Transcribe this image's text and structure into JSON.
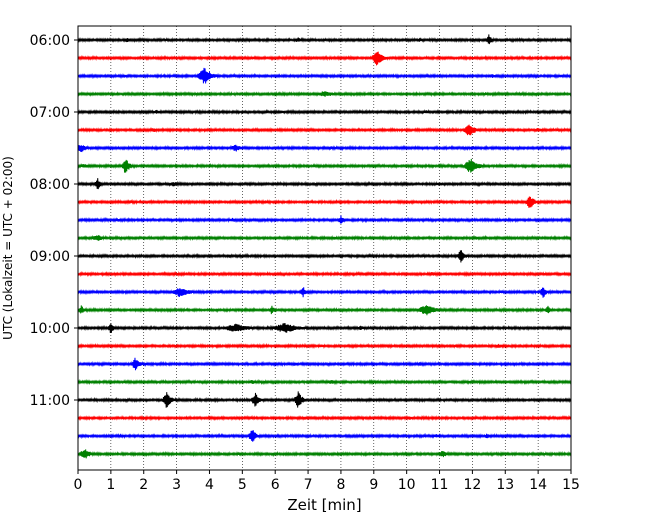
{
  "chart_data": {
    "type": "line",
    "title": "",
    "xlabel": "Zeit  [min]",
    "ylabel": "UTC (Lokalzeit = UTC + 02:00)",
    "xlim": [
      0,
      15
    ],
    "x_ticks": [
      0,
      1,
      2,
      3,
      4,
      5,
      6,
      7,
      8,
      9,
      10,
      11,
      12,
      13,
      14,
      15
    ],
    "x_tick_labels": [
      "0",
      "1",
      "2",
      "3",
      "4",
      "5",
      "6",
      "7",
      "8",
      "9",
      "10",
      "11",
      "12",
      "13",
      "14",
      "15"
    ],
    "y_ticks": [
      {
        "label": "06:00",
        "trace_index": 0
      },
      {
        "label": "07:00",
        "trace_index": 4
      },
      {
        "label": "08:00",
        "trace_index": 8
      },
      {
        "label": "09:00",
        "trace_index": 12
      },
      {
        "label": "10:00",
        "trace_index": 16
      },
      {
        "label": "11:00",
        "trace_index": 20
      }
    ],
    "grid": "vertical dotted",
    "trace_minutes": 15,
    "series_colors": [
      "#000000",
      "#ff0000",
      "#0000ff",
      "#008000"
    ],
    "traces": [
      {
        "start": "06:00",
        "color": "#000000",
        "events": [
          [
            1.5,
            0.25,
            0.2
          ],
          [
            6.7,
            0.3,
            0.2
          ],
          [
            10.4,
            0.25,
            0.15
          ],
          [
            12.5,
            0.7,
            0.1
          ]
        ]
      },
      {
        "start": "06:15",
        "color": "#ff0000",
        "events": [
          [
            9.1,
            0.9,
            0.2
          ],
          [
            5.3,
            0.2,
            0.15
          ],
          [
            12.0,
            0.2,
            0.2
          ]
        ]
      },
      {
        "start": "06:30",
        "color": "#0000ff",
        "events": [
          [
            3.85,
            1.0,
            0.25
          ],
          [
            1.4,
            0.2,
            0.2
          ],
          [
            12.6,
            0.25,
            0.2
          ],
          [
            14.7,
            0.2,
            0.2
          ]
        ]
      },
      {
        "start": "06:45",
        "color": "#008000",
        "events": [
          [
            7.5,
            0.35,
            0.4
          ],
          [
            12.4,
            0.2,
            0.2
          ],
          [
            13.5,
            0.2,
            0.2
          ]
        ]
      },
      {
        "start": "07:00",
        "color": "#000000",
        "events": [
          [
            2.4,
            0.25,
            0.2
          ],
          [
            6.2,
            0.2,
            0.2
          ],
          [
            10.6,
            0.2,
            0.2
          ]
        ]
      },
      {
        "start": "07:15",
        "color": "#ff0000",
        "events": [
          [
            11.9,
            0.85,
            0.2
          ],
          [
            2.3,
            0.25,
            0.2
          ],
          [
            14.0,
            0.25,
            0.2
          ]
        ]
      },
      {
        "start": "07:30",
        "color": "#0000ff",
        "events": [
          [
            0.1,
            0.5,
            0.2
          ],
          [
            4.8,
            0.45,
            0.2
          ],
          [
            7.7,
            0.2,
            0.2
          ],
          [
            12.0,
            0.25,
            0.2
          ]
        ]
      },
      {
        "start": "07:45",
        "color": "#008000",
        "events": [
          [
            1.45,
            0.95,
            0.15
          ],
          [
            11.95,
            0.9,
            0.25
          ],
          [
            0.2,
            0.3,
            0.2
          ]
        ]
      },
      {
        "start": "08:00",
        "color": "#000000",
        "events": [
          [
            0.6,
            0.7,
            0.1
          ],
          [
            2.9,
            0.3,
            0.2
          ],
          [
            6.0,
            0.2,
            0.2
          ],
          [
            11.0,
            0.25,
            0.2
          ]
        ]
      },
      {
        "start": "08:15",
        "color": "#ff0000",
        "events": [
          [
            13.75,
            0.9,
            0.15
          ],
          [
            1.6,
            0.2,
            0.2
          ],
          [
            5.7,
            0.2,
            0.2
          ]
        ]
      },
      {
        "start": "08:30",
        "color": "#0000ff",
        "events": [
          [
            8.0,
            0.55,
            0.1
          ],
          [
            4.7,
            0.25,
            0.2
          ],
          [
            1.2,
            0.2,
            0.2
          ]
        ]
      },
      {
        "start": "08:45",
        "color": "#008000",
        "events": [
          [
            0.6,
            0.4,
            0.25
          ],
          [
            7.8,
            0.2,
            0.2
          ],
          [
            12.1,
            0.2,
            0.2
          ]
        ]
      },
      {
        "start": "09:00",
        "color": "#000000",
        "events": [
          [
            11.65,
            0.75,
            0.15
          ],
          [
            4.6,
            0.2,
            0.2
          ],
          [
            10.0,
            0.2,
            0.2
          ]
        ]
      },
      {
        "start": "09:15",
        "color": "#ff0000",
        "events": [
          [
            3.0,
            0.2,
            0.2
          ],
          [
            10.8,
            0.25,
            0.2
          ],
          [
            14.2,
            0.2,
            0.2
          ]
        ]
      },
      {
        "start": "09:30",
        "color": "#0000ff",
        "events": [
          [
            3.1,
            0.6,
            0.35
          ],
          [
            6.85,
            0.65,
            0.1
          ],
          [
            14.15,
            0.85,
            0.1
          ],
          [
            12.9,
            0.2,
            0.2
          ]
        ]
      },
      {
        "start": "09:45",
        "color": "#008000",
        "events": [
          [
            0.1,
            0.55,
            0.1
          ],
          [
            5.9,
            0.55,
            0.1
          ],
          [
            10.6,
            0.65,
            0.35
          ],
          [
            14.3,
            0.55,
            0.1
          ]
        ]
      },
      {
        "start": "10:00",
        "color": "#000000",
        "events": [
          [
            1.0,
            0.7,
            0.1
          ],
          [
            4.8,
            0.5,
            0.5
          ],
          [
            6.3,
            0.6,
            0.5
          ],
          [
            8.6,
            0.25,
            0.2
          ]
        ]
      },
      {
        "start": "10:15",
        "color": "#ff0000",
        "events": [
          [
            3.0,
            0.2,
            0.2
          ],
          [
            7.4,
            0.2,
            0.2
          ],
          [
            11.5,
            0.2,
            0.2
          ],
          [
            12.8,
            0.25,
            0.2
          ]
        ]
      },
      {
        "start": "10:30",
        "color": "#0000ff",
        "events": [
          [
            1.75,
            0.8,
            0.15
          ],
          [
            6.6,
            0.2,
            0.2
          ],
          [
            10.4,
            0.2,
            0.2
          ]
        ]
      },
      {
        "start": "10:45",
        "color": "#008000",
        "events": [
          [
            5.3,
            0.25,
            0.2
          ],
          [
            7.7,
            0.3,
            0.2
          ],
          [
            11.9,
            0.2,
            0.2
          ]
        ]
      },
      {
        "start": "11:00",
        "color": "#000000",
        "events": [
          [
            2.7,
            1.0,
            0.15
          ],
          [
            5.4,
            0.9,
            0.15
          ],
          [
            6.7,
            1.0,
            0.15
          ],
          [
            4.1,
            0.2,
            0.2
          ]
        ]
      },
      {
        "start": "11:15",
        "color": "#ff0000",
        "events": [
          [
            2.0,
            0.2,
            0.2
          ],
          [
            6.9,
            0.2,
            0.2
          ],
          [
            10.1,
            0.2,
            0.2
          ]
        ]
      },
      {
        "start": "11:30",
        "color": "#0000ff",
        "events": [
          [
            5.3,
            0.85,
            0.15
          ],
          [
            1.3,
            0.25,
            0.2
          ],
          [
            10.9,
            0.25,
            0.2
          ],
          [
            12.45,
            0.35,
            0.1
          ]
        ]
      },
      {
        "start": "11:45",
        "color": "#008000",
        "events": [
          [
            0.2,
            0.7,
            0.2
          ],
          [
            11.1,
            0.4,
            0.2
          ],
          [
            4.9,
            0.2,
            0.2
          ]
        ]
      }
    ]
  }
}
